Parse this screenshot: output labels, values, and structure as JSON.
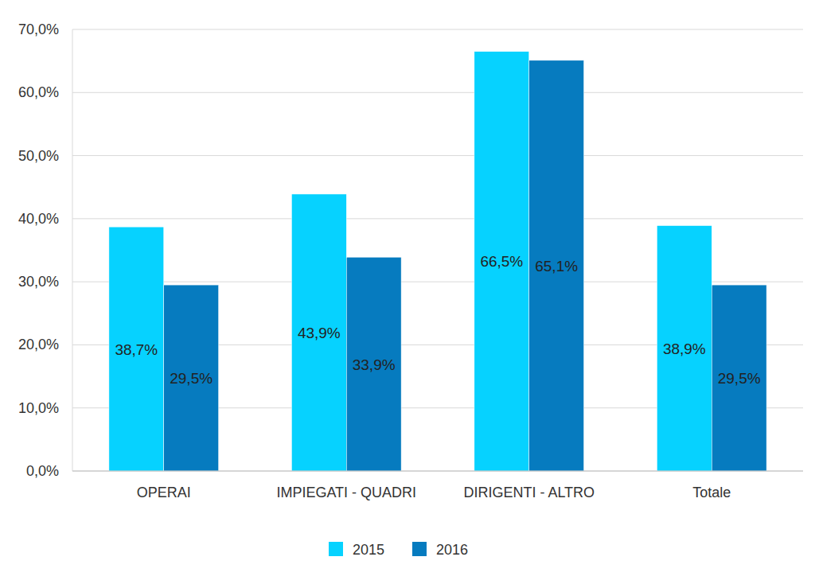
{
  "chart_data": {
    "type": "bar",
    "categories": [
      "OPERAI",
      "IMPIEGATI - QUADRI",
      "DIRIGENTI - ALTRO",
      "Totale"
    ],
    "series": [
      {
        "name": "2015",
        "color": "#06d2ff",
        "values": [
          38.7,
          43.9,
          66.5,
          38.9
        ],
        "value_labels": [
          "38,7%",
          "43,9%",
          "66,5%",
          "38,9%"
        ]
      },
      {
        "name": "2016",
        "color": "#067bbf",
        "values": [
          29.5,
          33.9,
          65.1,
          29.5
        ],
        "value_labels": [
          "29,5%",
          "33,9%",
          "65,1%",
          "29,5%"
        ]
      }
    ],
    "ylim": [
      0,
      70
    ],
    "yticks": [
      {
        "value": 0,
        "label": "0,0%"
      },
      {
        "value": 10,
        "label": "10,0%"
      },
      {
        "value": 20,
        "label": "20,0%"
      },
      {
        "value": 30,
        "label": "30,0%"
      },
      {
        "value": 40,
        "label": "40,0%"
      },
      {
        "value": 50,
        "label": "50,0%"
      },
      {
        "value": 60,
        "label": "60,0%"
      },
      {
        "value": 70,
        "label": "70,0%"
      }
    ],
    "grid": true,
    "legend": "bottom",
    "data_labels": true
  }
}
